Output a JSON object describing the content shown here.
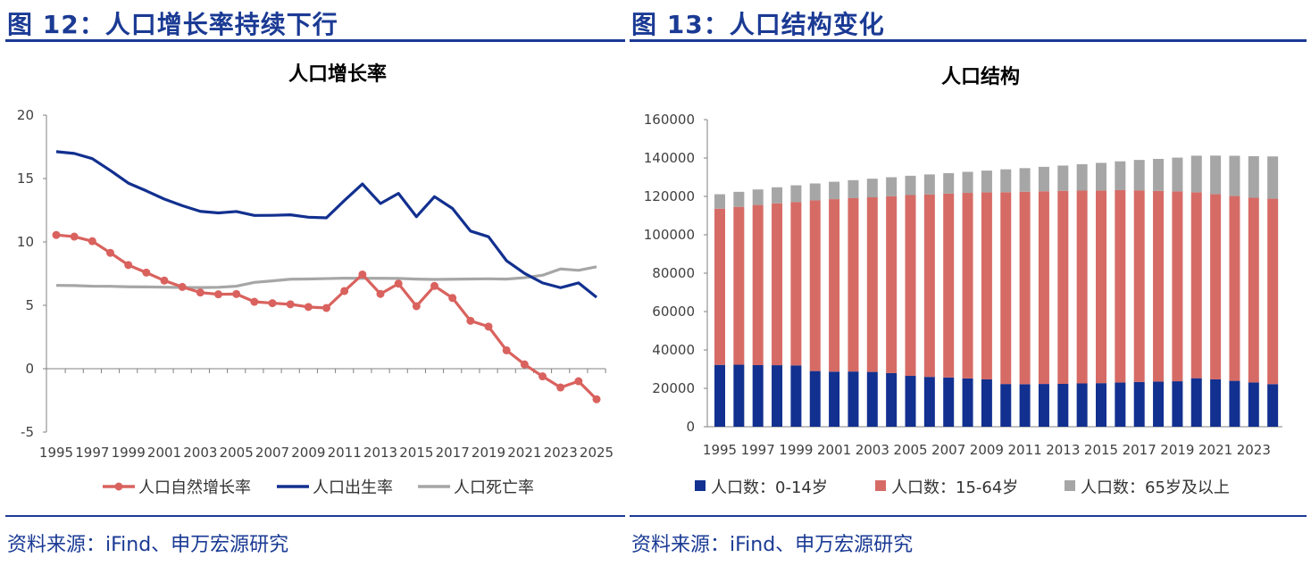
{
  "left": {
    "figure_title": "图 12：人口增长率持续下行",
    "source": "资料来源：iFind、申万宏源研究"
  },
  "right": {
    "figure_title": "图 13：人口结构变化",
    "source": "资料来源：iFind、申万宏源研究"
  },
  "colors": {
    "title_blue": "#1a3a94",
    "red": "#d9625e",
    "navy": "#12308f",
    "gray": "#a6a6a6",
    "bar_red": "#d66b66"
  },
  "chart_data": [
    {
      "type": "line",
      "title": "人口增长率",
      "ylim": [
        -5,
        20
      ],
      "yticks": [
        -5,
        0,
        5,
        10,
        15,
        20
      ],
      "xtick_labels": [
        "1995",
        "1997",
        "1999",
        "2001",
        "2003",
        "2005",
        "2007",
        "2009",
        "2011",
        "2013",
        "2015",
        "2017",
        "2019",
        "2021",
        "2023",
        "2025"
      ],
      "legend_position": "bottom",
      "grid": false,
      "x": [
        1995,
        1996,
        1997,
        1998,
        1999,
        2000,
        2001,
        2002,
        2003,
        2004,
        2005,
        2006,
        2007,
        2008,
        2009,
        2010,
        2011,
        2012,
        2013,
        2014,
        2015,
        2016,
        2017,
        2018,
        2019,
        2020,
        2021,
        2022,
        2023,
        2024,
        2025
      ],
      "series": [
        {
          "name": "人口自然增长率",
          "color": "#d9625e",
          "markers": true,
          "values": [
            10.55,
            10.42,
            10.06,
            9.14,
            8.18,
            7.58,
            6.95,
            6.45,
            6.01,
            5.87,
            5.89,
            5.28,
            5.17,
            5.08,
            4.87,
            4.79,
            6.13,
            7.43,
            5.9,
            6.71,
            4.93,
            6.53,
            5.58,
            3.78,
            3.32,
            1.45,
            0.34,
            -0.6,
            -1.48,
            -0.99,
            -2.41
          ]
        },
        {
          "name": "人口出生率",
          "color": "#12308f",
          "markers": false,
          "values": [
            17.12,
            16.98,
            16.57,
            15.64,
            14.64,
            14.03,
            13.38,
            12.86,
            12.41,
            12.29,
            12.4,
            12.09,
            12.1,
            12.14,
            11.95,
            11.9,
            13.27,
            14.57,
            13.03,
            13.83,
            11.99,
            13.57,
            12.64,
            10.86,
            10.41,
            8.52,
            7.52,
            6.77,
            6.39,
            6.77,
            5.63
          ]
        },
        {
          "name": "人口死亡率",
          "color": "#a6a6a6",
          "markers": false,
          "values": [
            6.57,
            6.56,
            6.51,
            6.5,
            6.46,
            6.45,
            6.43,
            6.41,
            6.4,
            6.42,
            6.51,
            6.81,
            6.93,
            7.06,
            7.08,
            7.11,
            7.14,
            7.13,
            7.13,
            7.12,
            7.07,
            7.04,
            7.06,
            7.08,
            7.09,
            7.07,
            7.18,
            7.37,
            7.87,
            7.76,
            8.04
          ]
        }
      ]
    },
    {
      "type": "bar",
      "stacked": true,
      "title": "人口结构",
      "ylim": [
        0,
        160000
      ],
      "yticks": [
        0,
        20000,
        40000,
        60000,
        80000,
        100000,
        120000,
        140000,
        160000
      ],
      "xtick_labels": [
        "1995",
        "1997",
        "1999",
        "2001",
        "2003",
        "2005",
        "2007",
        "2009",
        "2011",
        "2013",
        "2015",
        "2017",
        "2019",
        "2021",
        "2023"
      ],
      "legend_position": "bottom",
      "grid": false,
      "categories": [
        "1995",
        "1996",
        "1997",
        "1998",
        "1999",
        "2000",
        "2001",
        "2002",
        "2003",
        "2004",
        "2005",
        "2006",
        "2007",
        "2008",
        "2009",
        "2010",
        "2011",
        "2012",
        "2013",
        "2014",
        "2015",
        "2016",
        "2017",
        "2018",
        "2019",
        "2020",
        "2021",
        "2022",
        "2023",
        "2024"
      ],
      "series": [
        {
          "name": "人口数：0-14岁",
          "color": "#12308f",
          "values": [
            32218,
            32311,
            32093,
            32064,
            31950,
            29012,
            28716,
            28774,
            28559,
            27947,
            26504,
            25961,
            25660,
            25166,
            24659,
            22259,
            22164,
            22287,
            22329,
            22558,
            22715,
            23008,
            23348,
            23523,
            23689,
            25277,
            24678,
            23908,
            23063,
            22200
          ]
        },
        {
          "name": "人口数：15-64岁",
          "color": "#d66b66",
          "values": [
            81393,
            82245,
            83448,
            84338,
            85157,
            88910,
            89849,
            90302,
            90976,
            92184,
            94197,
            95068,
            95833,
            96680,
            97484,
            99938,
            100283,
            100403,
            100582,
            100469,
            100361,
            100260,
            99829,
            99357,
            98910,
            96871,
            96526,
            96289,
            96228,
            96600
          ]
        },
        {
          "name": "人口数：65岁及以上",
          "color": "#a6a6a6",
          "values": [
            7510,
            7833,
            8085,
            8359,
            8679,
            8821,
            9062,
            9377,
            9692,
            9857,
            10055,
            10419,
            10636,
            10956,
            11307,
            11894,
            12288,
            12714,
            13161,
            13755,
            14386,
            15003,
            15831,
            16658,
            17603,
            19064,
            20056,
            20978,
            21676,
            22023
          ]
        }
      ]
    }
  ]
}
